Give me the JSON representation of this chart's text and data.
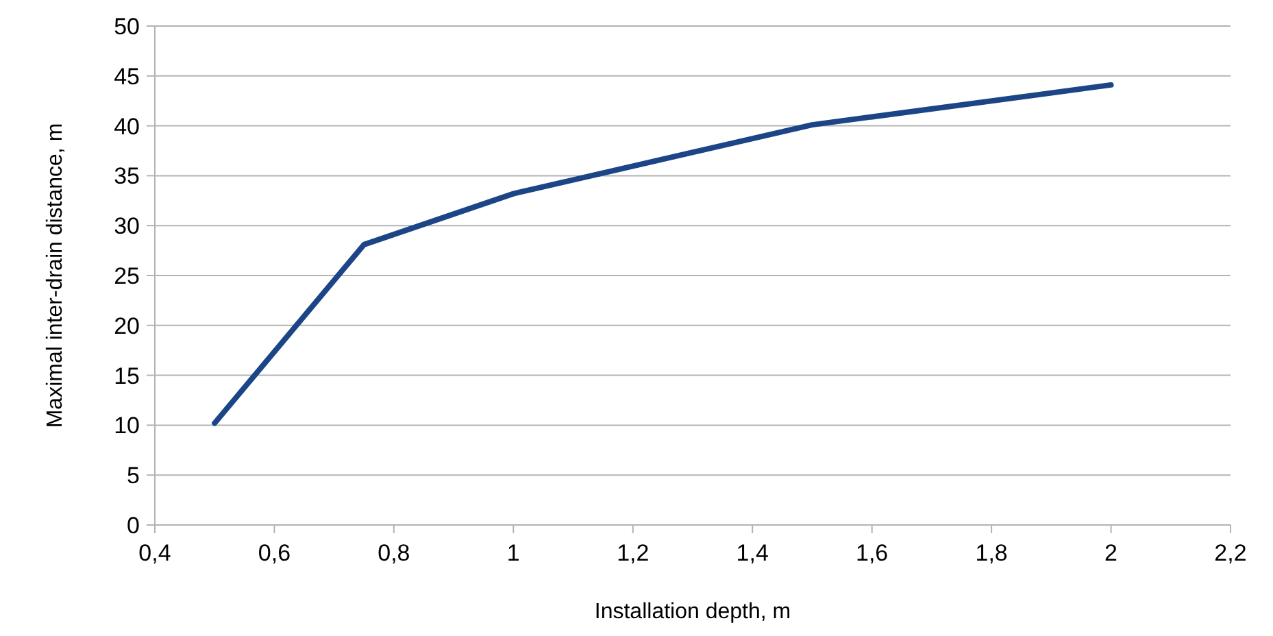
{
  "chart_data": {
    "type": "line",
    "xlabel": "Installation depth, m",
    "ylabel": "Maximal inter-drain distance, m",
    "x": [
      0.5,
      0.75,
      1,
      1.5,
      2
    ],
    "series": [
      {
        "color": "#1c4587",
        "values": [
          10.2,
          28.1,
          33.2,
          40.1,
          44.1
        ]
      }
    ],
    "xlim": [
      0.4,
      2.2
    ],
    "xticks": [
      {
        "value": 0.4,
        "label": "0,4"
      },
      {
        "value": 0.6,
        "label": "0,6"
      },
      {
        "value": 0.8,
        "label": "0,8"
      },
      {
        "value": 1,
        "label": "1"
      },
      {
        "value": 1.2,
        "label": "1,2"
      },
      {
        "value": 1.4,
        "label": "1,4"
      },
      {
        "value": 1.6,
        "label": "1,6"
      },
      {
        "value": 1.8,
        "label": "1,8"
      },
      {
        "value": 2,
        "label": "2"
      },
      {
        "value": 2.2,
        "label": "2,2"
      }
    ],
    "ylim": [
      0,
      50
    ],
    "yticks": [
      0,
      5,
      10,
      15,
      20,
      25,
      30,
      35,
      40,
      45,
      50
    ],
    "grid": "y",
    "marker": "none",
    "line_style": "solid"
  }
}
